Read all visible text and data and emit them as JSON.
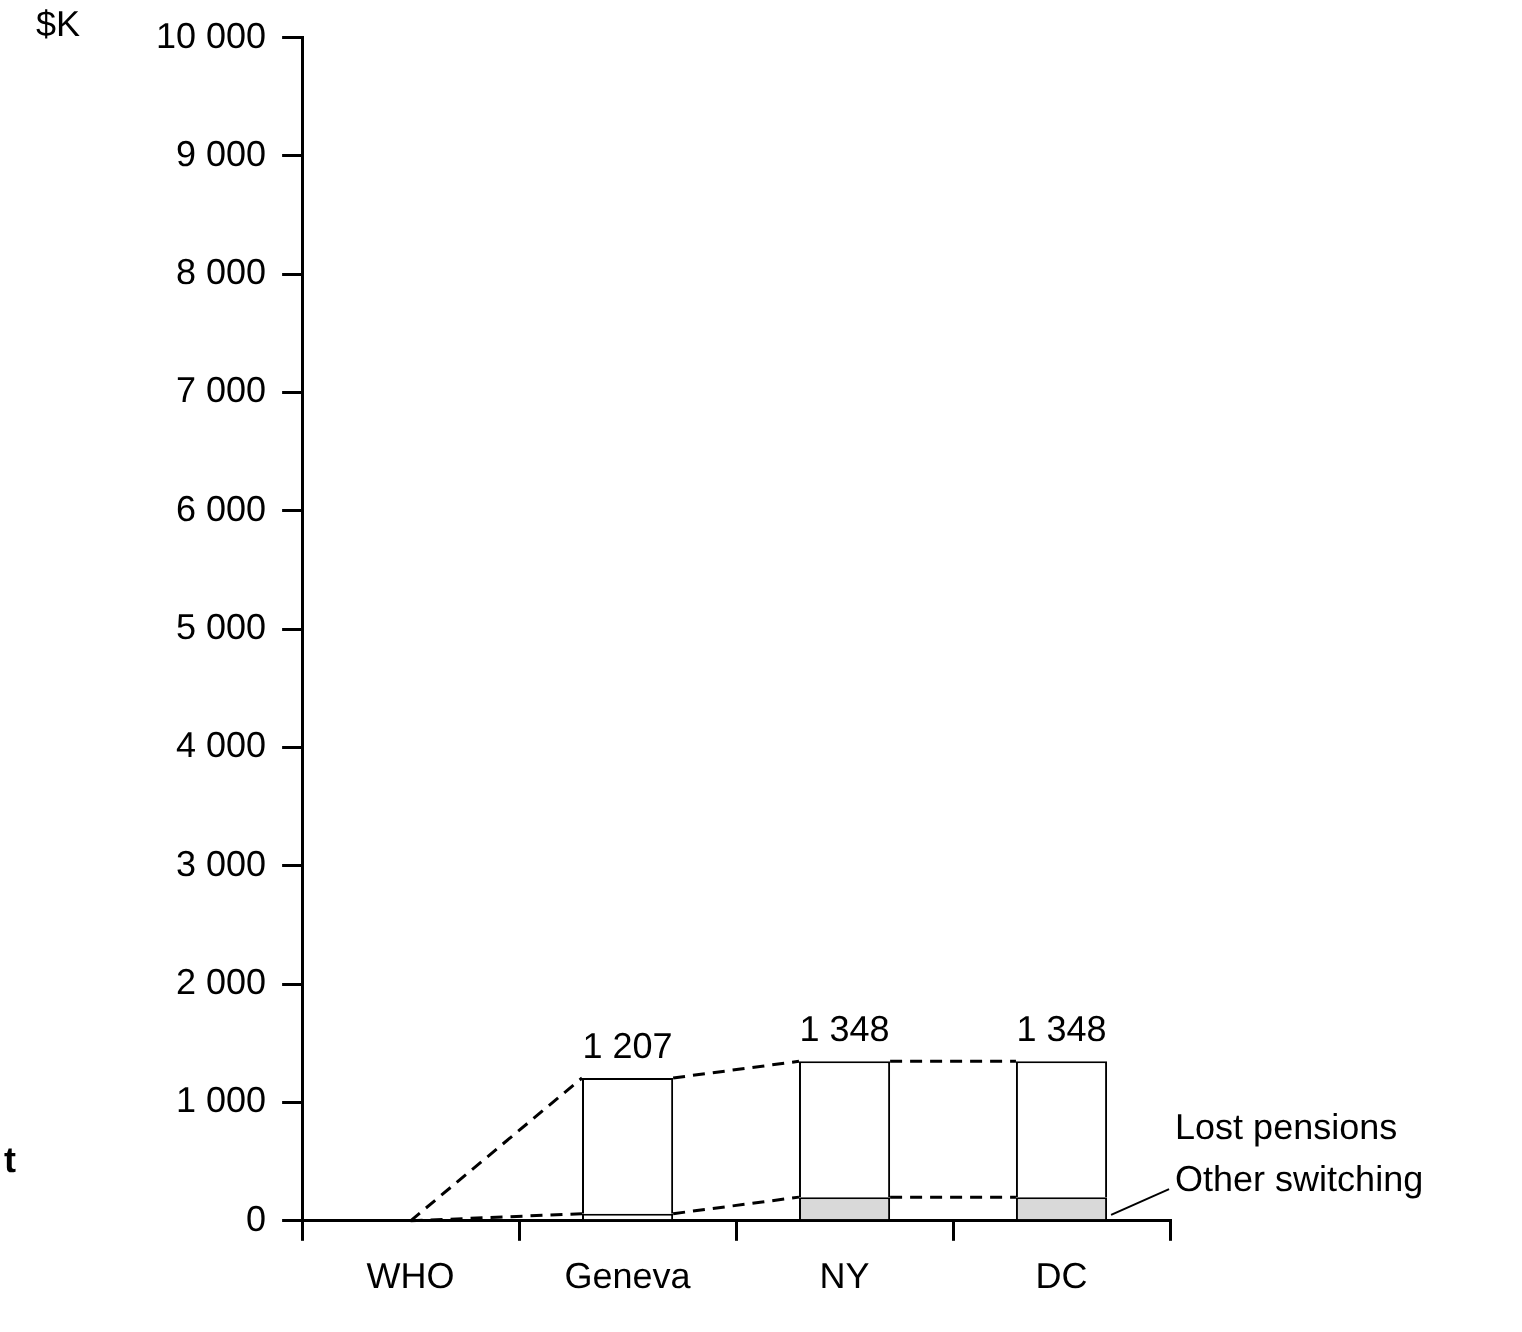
{
  "chart_data": {
    "type": "bar",
    "stacked": true,
    "ylabel": "$K",
    "categories": [
      "WHO",
      "Geneva",
      "NY",
      "DC"
    ],
    "series": [
      {
        "name": "Other switching",
        "colors": [
          "#ffffff",
          "#ffffff",
          "#d9d9d9",
          "#d9d9d9"
        ],
        "values": [
          0,
          60,
          200,
          200
        ]
      },
      {
        "name": "Lost pensions",
        "color": "#ffffff",
        "values": [
          0,
          1147,
          1148,
          1148
        ]
      }
    ],
    "totals": [
      null,
      "1 207",
      "1 348",
      "1 348"
    ],
    "ylim": [
      0,
      10000
    ],
    "yticks": [
      0,
      {
        "value": 1000,
        "label": "1 000"
      },
      {
        "value": 2000,
        "label": "2 000"
      },
      {
        "value": 3000,
        "label": "3 000"
      },
      {
        "value": 4000,
        "label": "4 000"
      },
      {
        "value": 5000,
        "label": "5 000"
      },
      {
        "value": 6000,
        "label": "6 000"
      },
      {
        "value": 7000,
        "label": "7 000"
      },
      {
        "value": 8000,
        "label": "8 000"
      },
      {
        "value": 9000,
        "label": "9 000"
      },
      {
        "value": 10000,
        "label": "10 000"
      }
    ],
    "grid": false,
    "annotations": [
      "t"
    ]
  }
}
